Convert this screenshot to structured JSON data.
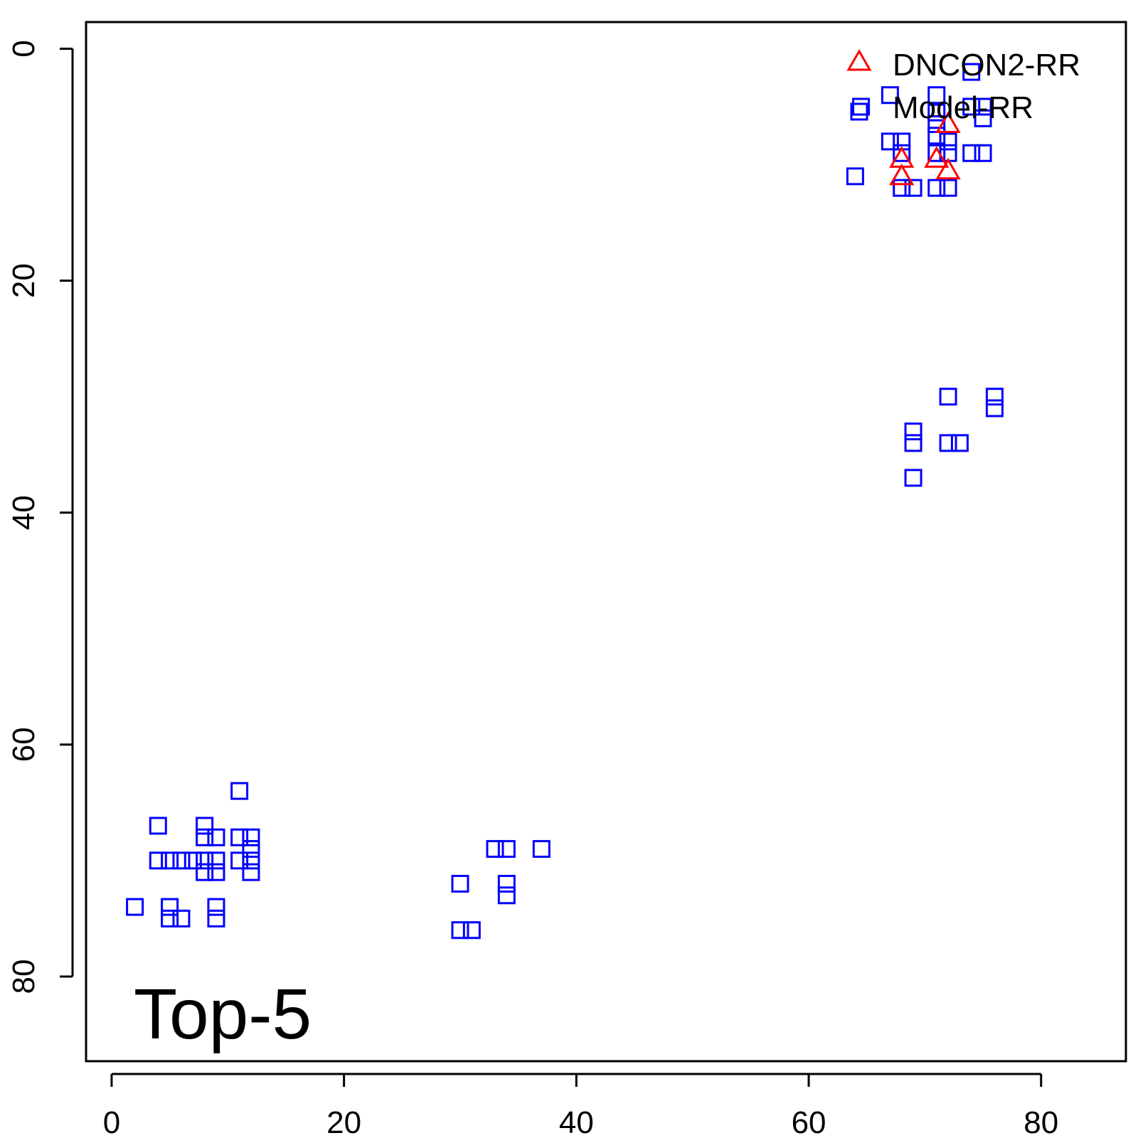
{
  "chart_data": {
    "type": "scatter",
    "label": "Top-5",
    "xlim": [
      -2.2,
      87.3
    ],
    "ylim": [
      -2.3,
      87.3
    ],
    "y_reversed": true,
    "x_ticks": [
      0,
      20,
      40,
      60,
      80
    ],
    "y_ticks": [
      0,
      20,
      40,
      60,
      80
    ],
    "legend_position": "top-right",
    "series": [
      {
        "name": "DNCON2-RR",
        "marker": "triangle",
        "color": "#ff0000",
        "points": [
          [
            68,
            9.5
          ],
          [
            68,
            11
          ],
          [
            71,
            9.5
          ],
          [
            72,
            6.5
          ],
          [
            72,
            10.5
          ]
        ]
      },
      {
        "name": "Model-RR",
        "marker": "square",
        "color": "#0000ff",
        "points": [
          [
            74,
            2
          ],
          [
            67,
            4
          ],
          [
            71,
            4
          ],
          [
            64.5,
            5
          ],
          [
            71,
            5.5
          ],
          [
            74,
            5
          ],
          [
            75,
            5
          ],
          [
            71,
            6.5
          ],
          [
            75,
            6
          ],
          [
            67,
            8
          ],
          [
            68,
            8
          ],
          [
            71,
            7.5
          ],
          [
            72,
            8
          ],
          [
            68,
            9
          ],
          [
            71,
            9
          ],
          [
            72,
            9
          ],
          [
            74,
            9
          ],
          [
            75,
            9
          ],
          [
            64,
            11
          ],
          [
            68,
            12
          ],
          [
            69,
            12
          ],
          [
            71,
            12
          ],
          [
            72,
            12
          ],
          [
            72,
            30
          ],
          [
            76,
            30
          ],
          [
            76,
            31
          ],
          [
            69,
            33
          ],
          [
            69,
            34
          ],
          [
            72,
            34
          ],
          [
            73,
            34
          ],
          [
            69,
            37
          ],
          [
            11,
            64
          ],
          [
            4,
            67
          ],
          [
            8,
            67
          ],
          [
            8,
            68
          ],
          [
            9,
            68
          ],
          [
            11,
            68
          ],
          [
            12,
            68
          ],
          [
            12,
            69
          ],
          [
            4,
            70
          ],
          [
            5,
            70
          ],
          [
            6,
            70
          ],
          [
            7,
            70
          ],
          [
            8,
            70
          ],
          [
            9,
            70
          ],
          [
            11,
            70
          ],
          [
            12,
            70
          ],
          [
            8,
            71
          ],
          [
            9,
            71
          ],
          [
            12,
            71
          ],
          [
            2,
            74
          ],
          [
            5,
            74
          ],
          [
            9,
            74
          ],
          [
            5,
            75
          ],
          [
            6,
            75
          ],
          [
            9,
            75
          ],
          [
            33,
            69
          ],
          [
            34,
            69
          ],
          [
            37,
            69
          ],
          [
            30,
            72
          ],
          [
            34,
            72
          ],
          [
            34,
            73
          ],
          [
            30,
            76
          ],
          [
            31,
            76
          ]
        ]
      }
    ]
  }
}
